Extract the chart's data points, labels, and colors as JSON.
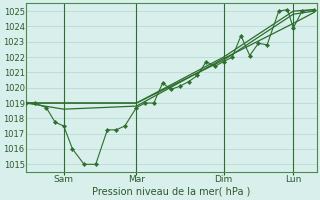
{
  "background_color": "#d8efec",
  "grid_color": "#b0d8d4",
  "line_color": "#2d6e2d",
  "marker_color": "#2d6e2d",
  "xlabel": "Pression niveau de la mer( hPa )",
  "ylim": [
    1014.5,
    1025.5
  ],
  "yticks": [
    1015,
    1016,
    1017,
    1018,
    1019,
    1020,
    1021,
    1022,
    1023,
    1024,
    1025
  ],
  "xlim": [
    0,
    1.0
  ],
  "xtick_labels": [
    "Sam",
    "Mar",
    "Dim",
    "Lun"
  ],
  "xtick_positions": [
    0.13,
    0.38,
    0.68,
    0.92
  ],
  "vline_positions": [
    0.13,
    0.38,
    0.68,
    0.92
  ],
  "series_main": [
    [
      0.0,
      1019.0
    ],
    [
      0.03,
      1019.0
    ],
    [
      0.07,
      1018.7
    ],
    [
      0.1,
      1017.75
    ],
    [
      0.13,
      1017.5
    ],
    [
      0.16,
      1016.0
    ],
    [
      0.2,
      1015.0
    ],
    [
      0.24,
      1015.0
    ],
    [
      0.28,
      1017.25
    ],
    [
      0.31,
      1017.25
    ],
    [
      0.34,
      1017.5
    ],
    [
      0.38,
      1018.7
    ],
    [
      0.41,
      1019.0
    ],
    [
      0.44,
      1019.0
    ],
    [
      0.47,
      1020.3
    ],
    [
      0.5,
      1019.9
    ],
    [
      0.53,
      1020.1
    ],
    [
      0.56,
      1020.4
    ],
    [
      0.59,
      1020.8
    ],
    [
      0.62,
      1021.7
    ],
    [
      0.65,
      1021.4
    ],
    [
      0.68,
      1021.7
    ],
    [
      0.71,
      1022.0
    ],
    [
      0.74,
      1023.4
    ],
    [
      0.77,
      1022.1
    ],
    [
      0.8,
      1022.9
    ],
    [
      0.83,
      1022.8
    ],
    [
      0.87,
      1025.0
    ],
    [
      0.9,
      1025.1
    ],
    [
      0.92,
      1023.9
    ],
    [
      0.95,
      1025.0
    ],
    [
      0.99,
      1025.1
    ]
  ],
  "series_trend1": [
    [
      0.0,
      1019.0
    ],
    [
      0.13,
      1019.0
    ],
    [
      0.38,
      1019.0
    ],
    [
      0.68,
      1021.8
    ],
    [
      0.92,
      1024.8
    ],
    [
      0.99,
      1025.0
    ]
  ],
  "series_trend2": [
    [
      0.0,
      1019.0
    ],
    [
      0.13,
      1018.6
    ],
    [
      0.38,
      1018.8
    ],
    [
      0.68,
      1021.9
    ],
    [
      0.92,
      1024.2
    ],
    [
      0.99,
      1024.9
    ]
  ],
  "series_trend3": [
    [
      0.0,
      1019.0
    ],
    [
      0.38,
      1019.0
    ],
    [
      0.68,
      1022.0
    ],
    [
      0.92,
      1025.0
    ],
    [
      0.99,
      1025.1
    ]
  ]
}
